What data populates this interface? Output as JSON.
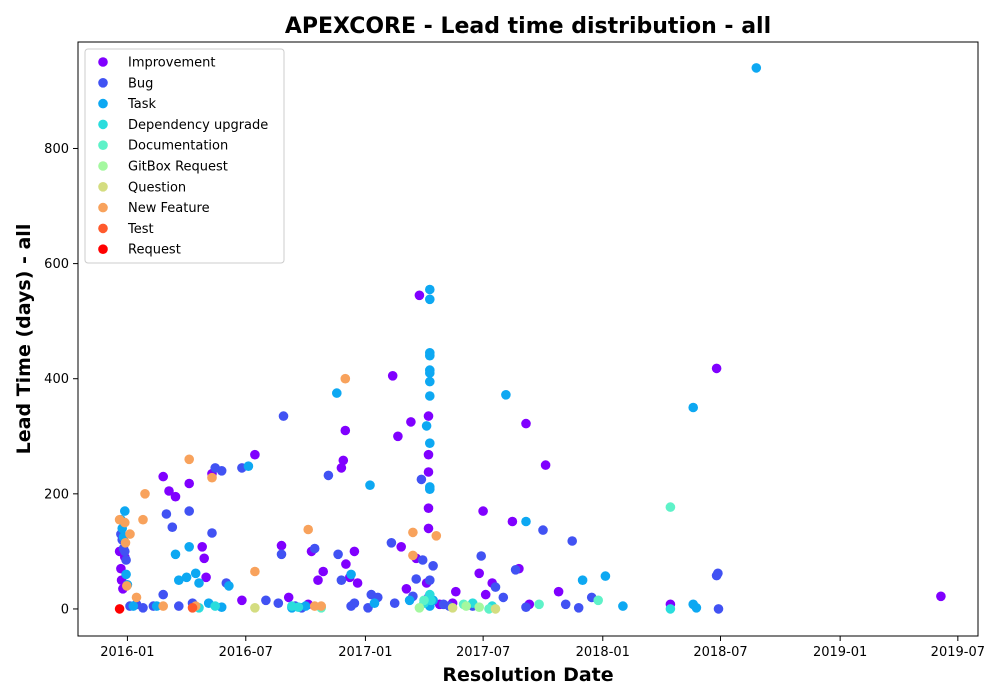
{
  "chart_data": {
    "type": "scatter",
    "title": "APEXCORE - Lead time distribution - all",
    "xlabel": "Resolution Date",
    "ylabel": "Lead Time (days) - all",
    "x_axis_type": "date",
    "xlim": [
      "2015-10-17",
      "2019-08-01"
    ],
    "ylim": [
      -47,
      985
    ],
    "xticks": [
      {
        "date": "2016-01-01",
        "label": "2016-01"
      },
      {
        "date": "2016-07-01",
        "label": "2016-07"
      },
      {
        "date": "2017-01-01",
        "label": "2017-01"
      },
      {
        "date": "2017-07-01",
        "label": "2017-07"
      },
      {
        "date": "2018-01-01",
        "label": "2018-01"
      },
      {
        "date": "2018-07-01",
        "label": "2018-07"
      },
      {
        "date": "2019-01-01",
        "label": "2019-01"
      },
      {
        "date": "2019-07-01",
        "label": "2019-07"
      }
    ],
    "yticks": [
      0,
      200,
      400,
      600,
      800
    ],
    "grid": false,
    "legend_position": "top-left",
    "series": [
      {
        "name": "Improvement",
        "color": "#8000ff",
        "points": [
          [
            "2015-12-20",
            100
          ],
          [
            "2015-12-22",
            70
          ],
          [
            "2015-12-23",
            50
          ],
          [
            "2015-12-25",
            35
          ],
          [
            "2015-12-28",
            90
          ],
          [
            "2016-02-25",
            230
          ],
          [
            "2016-03-05",
            205
          ],
          [
            "2016-03-15",
            195
          ],
          [
            "2016-04-05",
            218
          ],
          [
            "2016-04-25",
            108
          ],
          [
            "2016-04-28",
            88
          ],
          [
            "2016-05-01",
            55
          ],
          [
            "2016-05-10",
            235
          ],
          [
            "2016-06-25",
            15
          ],
          [
            "2016-07-15",
            268
          ],
          [
            "2016-08-25",
            110
          ],
          [
            "2016-09-05",
            20
          ],
          [
            "2016-10-05",
            8
          ],
          [
            "2016-10-10",
            100
          ],
          [
            "2016-10-20",
            50
          ],
          [
            "2016-10-28",
            65
          ],
          [
            "2016-11-25",
            245
          ],
          [
            "2016-11-28",
            258
          ],
          [
            "2016-12-01",
            310
          ],
          [
            "2016-12-02",
            78
          ],
          [
            "2016-12-08",
            55
          ],
          [
            "2016-12-15",
            100
          ],
          [
            "2016-12-20",
            45
          ],
          [
            "2017-02-12",
            405
          ],
          [
            "2017-02-20",
            300
          ],
          [
            "2017-02-25",
            108
          ],
          [
            "2017-03-05",
            35
          ],
          [
            "2017-03-12",
            325
          ],
          [
            "2017-03-20",
            88
          ],
          [
            "2017-03-25",
            545
          ],
          [
            "2017-04-05",
            45
          ],
          [
            "2017-04-08",
            140
          ],
          [
            "2017-04-08",
            175
          ],
          [
            "2017-04-08",
            238
          ],
          [
            "2017-04-08",
            268
          ],
          [
            "2017-04-08",
            335
          ],
          [
            "2017-04-08",
            20
          ],
          [
            "2017-04-25",
            8
          ],
          [
            "2017-05-15",
            10
          ],
          [
            "2017-05-20",
            30
          ],
          [
            "2017-06-25",
            62
          ],
          [
            "2017-07-01",
            170
          ],
          [
            "2017-07-05",
            25
          ],
          [
            "2017-07-15",
            45
          ],
          [
            "2017-08-15",
            152
          ],
          [
            "2017-08-25",
            70
          ],
          [
            "2017-09-05",
            322
          ],
          [
            "2017-09-10",
            8
          ],
          [
            "2017-10-05",
            250
          ],
          [
            "2017-10-25",
            30
          ],
          [
            "2018-04-15",
            8
          ],
          [
            "2018-06-25",
            418
          ],
          [
            "2019-06-05",
            22
          ]
        ]
      },
      {
        "name": "Bug",
        "color": "#4152f3",
        "points": [
          [
            "2015-12-22",
            130
          ],
          [
            "2015-12-24",
            120
          ],
          [
            "2015-12-26",
            105
          ],
          [
            "2015-12-28",
            100
          ],
          [
            "2015-12-30",
            85
          ],
          [
            "2016-01-05",
            5
          ],
          [
            "2016-01-15",
            8
          ],
          [
            "2016-01-25",
            2
          ],
          [
            "2016-02-10",
            5
          ],
          [
            "2016-02-25",
            25
          ],
          [
            "2016-03-01",
            165
          ],
          [
            "2016-03-10",
            142
          ],
          [
            "2016-03-20",
            5
          ],
          [
            "2016-04-05",
            170
          ],
          [
            "2016-04-10",
            10
          ],
          [
            "2016-05-10",
            132
          ],
          [
            "2016-05-15",
            245
          ],
          [
            "2016-05-25",
            240
          ],
          [
            "2016-06-01",
            45
          ],
          [
            "2016-06-25",
            245
          ],
          [
            "2016-08-01",
            15
          ],
          [
            "2016-08-20",
            10
          ],
          [
            "2016-08-25",
            95
          ],
          [
            "2016-08-28",
            335
          ],
          [
            "2016-09-15",
            5
          ],
          [
            "2016-09-25",
            2
          ],
          [
            "2016-10-15",
            105
          ],
          [
            "2016-11-05",
            232
          ],
          [
            "2016-11-20",
            95
          ],
          [
            "2016-11-25",
            50
          ],
          [
            "2016-12-10",
            5
          ],
          [
            "2016-12-15",
            10
          ],
          [
            "2017-01-05",
            2
          ],
          [
            "2017-01-10",
            25
          ],
          [
            "2017-01-20",
            20
          ],
          [
            "2017-02-10",
            115
          ],
          [
            "2017-02-15",
            10
          ],
          [
            "2017-03-15",
            22
          ],
          [
            "2017-03-20",
            52
          ],
          [
            "2017-03-28",
            225
          ],
          [
            "2017-03-30",
            85
          ],
          [
            "2017-04-10",
            50
          ],
          [
            "2017-04-15",
            75
          ],
          [
            "2017-05-01",
            8
          ],
          [
            "2017-05-10",
            5
          ],
          [
            "2017-06-15",
            5
          ],
          [
            "2017-06-28",
            92
          ],
          [
            "2017-07-20",
            38
          ],
          [
            "2017-08-01",
            20
          ],
          [
            "2017-08-20",
            68
          ],
          [
            "2017-09-05",
            3
          ],
          [
            "2017-10-01",
            137
          ],
          [
            "2017-11-05",
            8
          ],
          [
            "2017-11-15",
            118
          ],
          [
            "2017-11-25",
            2
          ],
          [
            "2017-12-15",
            20
          ],
          [
            "2018-06-25",
            58
          ],
          [
            "2018-06-27",
            62
          ],
          [
            "2018-06-28",
            0
          ]
        ]
      },
      {
        "name": "Task",
        "color": "#0da8f2",
        "points": [
          [
            "2015-12-22",
            155
          ],
          [
            "2015-12-24",
            140
          ],
          [
            "2015-12-26",
            125
          ],
          [
            "2015-12-28",
            170
          ],
          [
            "2015-12-30",
            60
          ],
          [
            "2016-01-01",
            42
          ],
          [
            "2016-01-10",
            5
          ],
          [
            "2016-02-15",
            5
          ],
          [
            "2016-03-15",
            95
          ],
          [
            "2016-03-20",
            50
          ],
          [
            "2016-04-01",
            55
          ],
          [
            "2016-04-05",
            108
          ],
          [
            "2016-04-15",
            62
          ],
          [
            "2016-04-20",
            45
          ],
          [
            "2016-05-05",
            10
          ],
          [
            "2016-05-25",
            3
          ],
          [
            "2016-06-05",
            40
          ],
          [
            "2016-07-05",
            248
          ],
          [
            "2016-09-10",
            2
          ],
          [
            "2016-10-01",
            5
          ],
          [
            "2016-11-18",
            375
          ],
          [
            "2016-12-10",
            60
          ],
          [
            "2017-01-08",
            215
          ],
          [
            "2017-01-15",
            10
          ],
          [
            "2017-03-10",
            15
          ],
          [
            "2017-04-05",
            318
          ],
          [
            "2017-04-10",
            555
          ],
          [
            "2017-04-10",
            538
          ],
          [
            "2017-04-10",
            445
          ],
          [
            "2017-04-10",
            440
          ],
          [
            "2017-04-10",
            415
          ],
          [
            "2017-04-10",
            410
          ],
          [
            "2017-04-10",
            395
          ],
          [
            "2017-04-10",
            370
          ],
          [
            "2017-04-10",
            288
          ],
          [
            "2017-04-10",
            212
          ],
          [
            "2017-04-10",
            208
          ],
          [
            "2017-04-10",
            5
          ],
          [
            "2017-04-15",
            15
          ],
          [
            "2017-08-05",
            372
          ],
          [
            "2017-09-05",
            152
          ],
          [
            "2017-12-01",
            50
          ],
          [
            "2018-01-05",
            57
          ],
          [
            "2018-02-01",
            5
          ],
          [
            "2018-05-20",
            350
          ],
          [
            "2018-05-20",
            8
          ],
          [
            "2018-05-25",
            2
          ],
          [
            "2018-08-25",
            940
          ]
        ]
      },
      {
        "name": "Dependency upgrade",
        "color": "#2adddd",
        "points": [
          [
            "2016-04-20",
            2
          ],
          [
            "2016-05-15",
            5
          ],
          [
            "2016-09-10",
            5
          ],
          [
            "2016-09-20",
            3
          ],
          [
            "2017-04-01",
            10
          ],
          [
            "2017-04-10",
            25
          ],
          [
            "2017-04-12",
            15
          ],
          [
            "2017-06-15",
            10
          ],
          [
            "2017-07-15",
            5
          ],
          [
            "2018-04-15",
            0
          ]
        ]
      },
      {
        "name": "Documentation",
        "color": "#5ef2c8",
        "points": [
          [
            "2016-10-25",
            2
          ],
          [
            "2017-04-01",
            15
          ],
          [
            "2017-06-01",
            8
          ],
          [
            "2017-07-10",
            0
          ],
          [
            "2017-09-25",
            8
          ],
          [
            "2017-12-25",
            15
          ],
          [
            "2018-04-15",
            177
          ]
        ]
      },
      {
        "name": "GitBox Request",
        "color": "#a4f89f",
        "points": [
          [
            "2017-03-25",
            2
          ],
          [
            "2017-06-05",
            5
          ],
          [
            "2017-06-25",
            3
          ]
        ]
      },
      {
        "name": "Question",
        "color": "#d4dd80",
        "points": [
          [
            "2016-07-15",
            2
          ],
          [
            "2017-05-15",
            2
          ],
          [
            "2017-07-20",
            0
          ]
        ]
      },
      {
        "name": "New Feature",
        "color": "#f8a25c",
        "points": [
          [
            "2015-12-20",
            155
          ],
          [
            "2015-12-28",
            150
          ],
          [
            "2015-12-29",
            115
          ],
          [
            "2015-12-31",
            40
          ],
          [
            "2016-01-05",
            130
          ],
          [
            "2016-01-15",
            20
          ],
          [
            "2016-01-25",
            155
          ],
          [
            "2016-01-28",
            200
          ],
          [
            "2016-02-25",
            5
          ],
          [
            "2016-04-05",
            260
          ],
          [
            "2016-04-15",
            5
          ],
          [
            "2016-05-10",
            228
          ],
          [
            "2016-07-15",
            65
          ],
          [
            "2016-10-05",
            138
          ],
          [
            "2016-10-15",
            5
          ],
          [
            "2016-10-25",
            5
          ],
          [
            "2016-12-01",
            400
          ],
          [
            "2017-03-15",
            133
          ],
          [
            "2017-03-15",
            93
          ],
          [
            "2017-04-20",
            127
          ]
        ]
      },
      {
        "name": "Test",
        "color": "#ff5a2d",
        "points": [
          [
            "2016-04-10",
            2
          ]
        ]
      },
      {
        "name": "Request",
        "color": "#ff0000",
        "points": [
          [
            "2015-12-20",
            0
          ]
        ]
      }
    ]
  }
}
